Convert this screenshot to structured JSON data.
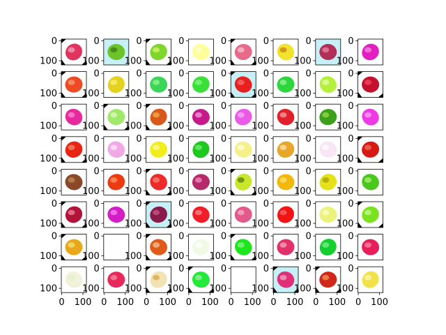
{
  "figure": {
    "rows": 8,
    "cols": 8,
    "y_ticks": [
      "0",
      "100"
    ],
    "x_ticks": [
      "0",
      "100"
    ],
    "tiles": [
      [
        {
          "bg": "#ffffff",
          "fruit": "#e0345e",
          "alt": "#f2a3c0",
          "corners": true
        },
        {
          "bg": "#c6f0f6",
          "fruit": "#6cc42a",
          "alt": "#3b7a18",
          "corners": false
        },
        {
          "bg": "#ffffff",
          "fruit": "#7fd62e",
          "alt": "#d9f26a",
          "corners": true
        },
        {
          "bg": "#ffffff",
          "fruit": "#ffff99",
          "alt": "#ffffcc",
          "corners": false
        },
        {
          "bg": "#ffffff",
          "fruit": "#e86a8a",
          "alt": "#f7c4d4",
          "corners": true
        },
        {
          "bg": "#ffffff",
          "fruit": "#f2e22c",
          "alt": "#c7801a",
          "corners": false
        },
        {
          "bg": "#c6f0f6",
          "fruit": "#b22f57",
          "alt": "#e88aa3",
          "corners": false
        },
        {
          "bg": "#ffffff",
          "fruit": "#e41fc2",
          "alt": "#f58ee0",
          "corners": false
        }
      ],
      [
        {
          "bg": "#ffffff",
          "fruit": "#ee4a24",
          "alt": "#f7a07a",
          "corners": true
        },
        {
          "bg": "#ffffff",
          "fruit": "#e5d21e",
          "alt": "#f7f07a",
          "corners": false
        },
        {
          "bg": "#ffffff",
          "fruit": "#3ad65a",
          "alt": "#9ff08e",
          "corners": false
        },
        {
          "bg": "#ffffff",
          "fruit": "#38e038",
          "alt": "#8af58a",
          "corners": false
        },
        {
          "bg": "#c6f0f6",
          "fruit": "#e82020",
          "alt": "#f77070",
          "corners": true
        },
        {
          "bg": "#ffffff",
          "fruit": "#2cd63c",
          "alt": "#9ef09a",
          "corners": false
        },
        {
          "bg": "#ffffff",
          "fruit": "#b4f03c",
          "alt": "#e8fbb0",
          "corners": false
        },
        {
          "bg": "#ffffff",
          "fruit": "#c4122e",
          "alt": "#f04a66",
          "corners": true
        }
      ],
      [
        {
          "bg": "#ffffff",
          "fruit": "#e62a9e",
          "alt": "#f58ed0",
          "corners": false
        },
        {
          "bg": "#ffffff",
          "fruit": "#9fe86a",
          "alt": "#e2f7c2",
          "corners": true
        },
        {
          "bg": "#ffffff",
          "fruit": "#d85a1a",
          "alt": "#f5b04a",
          "corners": true
        },
        {
          "bg": "#ffffff",
          "fruit": "#c41a8a",
          "alt": "#f0a0d8",
          "corners": false
        },
        {
          "bg": "#ffffff",
          "fruit": "#ea5ae6",
          "alt": "#f8b0f4",
          "corners": false
        },
        {
          "bg": "#ffffff",
          "fruit": "#e0202a",
          "alt": "#f4a0a4",
          "corners": false
        },
        {
          "bg": "#ffffff",
          "fruit": "#3ca01a",
          "alt": "#9bd84a",
          "corners": false
        },
        {
          "bg": "#ffffff",
          "fruit": "#ee3ae4",
          "alt": "#f8a6f2",
          "corners": false
        }
      ],
      [
        {
          "bg": "#ffffff",
          "fruit": "#e82412",
          "alt": "#f48a6a",
          "corners": true
        },
        {
          "bg": "#ffffff",
          "fruit": "#f0a8e6",
          "alt": "#fde6fa",
          "corners": false
        },
        {
          "bg": "#ffffff",
          "fruit": "#f2ee1a",
          "alt": "#fffa9a",
          "corners": false
        },
        {
          "bg": "#ffffff",
          "fruit": "#1ec81e",
          "alt": "#7af07a",
          "corners": false
        },
        {
          "bg": "#ffffff",
          "fruit": "#f6f08a",
          "alt": "#fffde0",
          "corners": false
        },
        {
          "bg": "#ffffff",
          "fruit": "#e8a62a",
          "alt": "#fbe4a8",
          "corners": false
        },
        {
          "bg": "#ffffff",
          "fruit": "#f8e6f6",
          "alt": "#ffffff",
          "corners": false
        },
        {
          "bg": "#ffffff",
          "fruit": "#d81a14",
          "alt": "#f27060",
          "corners": true
        }
      ],
      [
        {
          "bg": "#ffffff",
          "fruit": "#8a4a2a",
          "alt": "#c48a5a",
          "corners": false
        },
        {
          "bg": "#ffffff",
          "fruit": "#ee3a12",
          "alt": "#f79a6a",
          "corners": false
        },
        {
          "bg": "#ffffff",
          "fruit": "#ee2a2a",
          "alt": "#f78a7a",
          "corners": true
        },
        {
          "bg": "#ffffff",
          "fruit": "#b42a6a",
          "alt": "#f090c0",
          "corners": false
        },
        {
          "bg": "#ffffff",
          "fruit": "#c8e62a",
          "alt": "#5a7a12",
          "corners": true
        },
        {
          "bg": "#ffffff",
          "fruit": "#f2b80e",
          "alt": "#fbe070",
          "corners": false
        },
        {
          "bg": "#ffffff",
          "fruit": "#e6e21a",
          "alt": "#a6a20a",
          "corners": false
        },
        {
          "bg": "#ffffff",
          "fruit": "#4ac81e",
          "alt": "#b2f07a",
          "corners": false
        }
      ],
      [
        {
          "bg": "#ffffff",
          "fruit": "#b01438",
          "alt": "#f08aa0",
          "corners": true
        },
        {
          "bg": "#ffffff",
          "fruit": "#d21ec4",
          "alt": "#f48af0",
          "corners": false
        },
        {
          "bg": "#c6f0f6",
          "fruit": "#8a1a4a",
          "alt": "#c45a8a",
          "corners": true
        },
        {
          "bg": "#ffffff",
          "fruit": "#f01e28",
          "alt": "#f88a8a",
          "corners": false
        },
        {
          "bg": "#ffffff",
          "fruit": "#e25a8a",
          "alt": "#f8b0cc",
          "corners": false
        },
        {
          "bg": "#ffffff",
          "fruit": "#f01414",
          "alt": "#f86a6a",
          "corners": false
        },
        {
          "bg": "#ffffff",
          "fruit": "#ecf27a",
          "alt": "#fbfcd4",
          "corners": false
        },
        {
          "bg": "#ffffff",
          "fruit": "#7ae21e",
          "alt": "#c8f79a",
          "corners": true
        }
      ],
      [
        {
          "bg": "#ffffff",
          "fruit": "#e8a81a",
          "alt": "#f7e27a",
          "corners": true
        },
        {
          "bg": "#ffffff",
          "fruit": "#ffffff",
          "alt": "#ffffff",
          "corners": false
        },
        {
          "bg": "#ffffff",
          "fruit": "#e05a1a",
          "alt": "#f7c49a",
          "corners": true
        },
        {
          "bg": "#ffffff",
          "fruit": "#f2fae6",
          "alt": "#ffffff",
          "corners": false
        },
        {
          "bg": "#ffffff",
          "fruit": "#1ee61e",
          "alt": "#8af58a",
          "corners": true
        },
        {
          "bg": "#ffffff",
          "fruit": "#e2306a",
          "alt": "#f7a6c0",
          "corners": false
        },
        {
          "bg": "#ffffff",
          "fruit": "#14d02e",
          "alt": "#7af08a",
          "corners": false
        },
        {
          "bg": "#ffffff",
          "fruit": "#e81e5a",
          "alt": "#f78aa6",
          "corners": false
        }
      ],
      [
        {
          "bg": "#ffffff",
          "fruit": "#f2f2da",
          "alt": "#e0f0c4",
          "corners": false
        },
        {
          "bg": "#ffffff",
          "fruit": "#e8285a",
          "alt": "#f78aa6",
          "corners": false
        },
        {
          "bg": "#ffffff",
          "fruit": "#f2e2b4",
          "alt": "#d8a84a",
          "corners": true
        },
        {
          "bg": "#ffffff",
          "fruit": "#24e83a",
          "alt": "#9af5a4",
          "corners": true
        },
        {
          "bg": "#ffffff",
          "fruit": "#ffffff",
          "alt": "#ffffff",
          "corners": false
        },
        {
          "bg": "#c6f0f6",
          "fruit": "#e0307a",
          "alt": "#f7a6c8",
          "corners": true
        },
        {
          "bg": "#ffffff",
          "fruit": "#d0281a",
          "alt": "#f09a5a",
          "corners": true
        },
        {
          "bg": "#ffffff",
          "fruit": "#f2e24a",
          "alt": "#fdf6b4",
          "corners": false
        }
      ]
    ]
  }
}
